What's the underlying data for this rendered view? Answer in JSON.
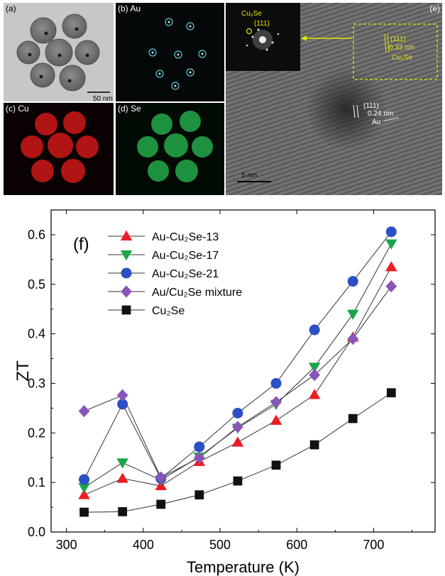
{
  "panels": {
    "a": {
      "label": "(a)",
      "scalebar": "50 nm"
    },
    "b": {
      "label": "(b) Au"
    },
    "c": {
      "label": "(c) Cu"
    },
    "d": {
      "label": "(d) Se"
    },
    "e": {
      "label": "(e)",
      "scalebar": "5 nm",
      "inset_label": "Cu₂Se",
      "inset_plane": "(111)",
      "box_plane": "(111)",
      "box_spacing": "0.33 nm",
      "box_material": "Cu₂Se",
      "particle_plane": "(111)",
      "particle_spacing": "0.24 nm",
      "particle_material": "Au"
    }
  },
  "chart_data": {
    "type": "line",
    "panel_label": "(f)",
    "xlabel": "Temperature (K)",
    "ylabel": "ZT",
    "xlim": [
      280,
      780
    ],
    "ylim": [
      0,
      0.65
    ],
    "xticks": [
      300,
      400,
      500,
      600,
      700
    ],
    "yticks": [
      0.0,
      0.1,
      0.2,
      0.3,
      0.4,
      0.5,
      0.6
    ],
    "tick_labels_x": [
      "300",
      "400",
      "500",
      "600",
      "700"
    ],
    "tick_labels_y": [
      "0.0",
      "0.1",
      "0.2",
      "0.3",
      "0.4",
      "0.5",
      "0.6"
    ],
    "legend_position": "top-left",
    "x": [
      323,
      373,
      423,
      473,
      523,
      573,
      623,
      673,
      723
    ],
    "series": [
      {
        "name": "Au-Cu₂Se-13",
        "marker": "triangle-up",
        "color": "#ee1c25",
        "values": [
          0.075,
          0.108,
          0.093,
          0.142,
          0.181,
          0.225,
          0.277,
          0.393,
          0.535
        ]
      },
      {
        "name": "Au-Cu₂Se-17",
        "marker": "triangle-down",
        "color": "#1aa548",
        "values": [
          0.09,
          0.14,
          0.105,
          0.152,
          0.21,
          0.258,
          0.333,
          0.44,
          0.582
        ]
      },
      {
        "name": "Au-Cu₂Se-21",
        "marker": "circle",
        "color": "#2b4fc4",
        "values": [
          0.106,
          0.258,
          0.108,
          0.172,
          0.24,
          0.3,
          0.408,
          0.506,
          0.606
        ]
      },
      {
        "name": "Au/Cu₂Se mixture",
        "marker": "diamond",
        "color": "#8a55b8",
        "values": [
          0.244,
          0.276,
          0.11,
          0.15,
          0.212,
          0.262,
          0.317,
          0.39,
          0.496
        ]
      },
      {
        "name": "Cu₂Se",
        "marker": "square",
        "color": "#111111",
        "values": [
          0.04,
          0.041,
          0.056,
          0.075,
          0.103,
          0.135,
          0.176,
          0.229,
          0.281
        ]
      }
    ]
  }
}
